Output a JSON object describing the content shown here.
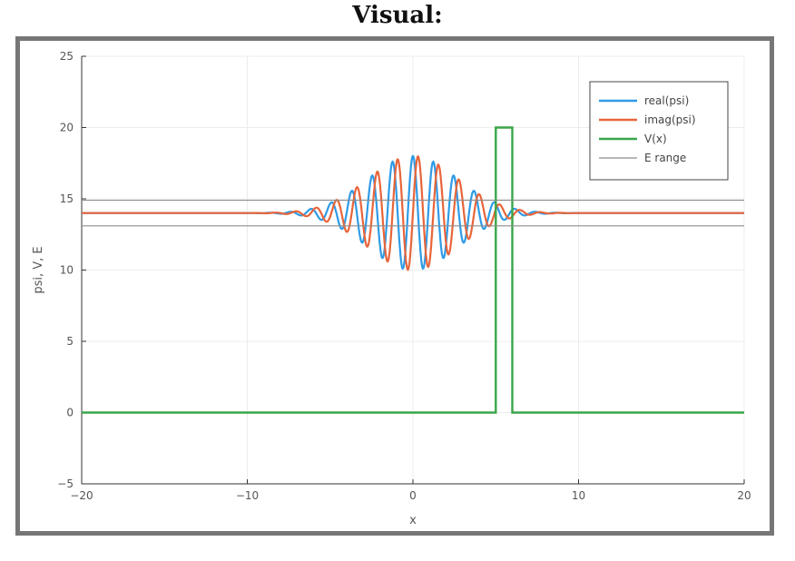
{
  "heading": "Visual:",
  "chart_data": {
    "type": "line",
    "xlabel": "x",
    "ylabel": "psi, V, E",
    "xlim": [
      -20,
      20
    ],
    "ylim": [
      -5,
      25
    ],
    "xticks": [
      -20,
      -10,
      0,
      10,
      20
    ],
    "xtick_labels": [
      "−20",
      "−10",
      "0",
      "10",
      "20"
    ],
    "yticks": [
      -5,
      0,
      5,
      10,
      15,
      20,
      25
    ],
    "ytick_labels": [
      "−5",
      "0",
      "5",
      "10",
      "15",
      "20",
      "25"
    ],
    "grid": true,
    "legend_position": "top-right",
    "series": [
      {
        "name": "real(psi)",
        "color": "#2f9be6",
        "values_desc": "wave packet: offset 14, Gaussian envelope (amplitude ~4, centre 0, width ~3.8), oscillation wavenumber ~5.1 rad/unit",
        "offset": 14,
        "amplitude": 4.0,
        "center": 0,
        "width": 3.8,
        "wavenumber": 5.1,
        "phase": 0
      },
      {
        "name": "imag(psi)",
        "color": "#e8653a",
        "offset": 14,
        "amplitude": 4.0,
        "center": 0,
        "width": 3.8,
        "wavenumber": 5.1,
        "phase": -1.5708
      },
      {
        "name": "V(x)",
        "color": "#3aa64a",
        "x": [
          -20,
          5,
          5,
          6,
          6,
          20
        ],
        "y": [
          0,
          0,
          20,
          20,
          0,
          0
        ]
      },
      {
        "name": "E range",
        "color": "#8c8c8c",
        "hlines": [
          13.1,
          14.9
        ]
      }
    ]
  }
}
